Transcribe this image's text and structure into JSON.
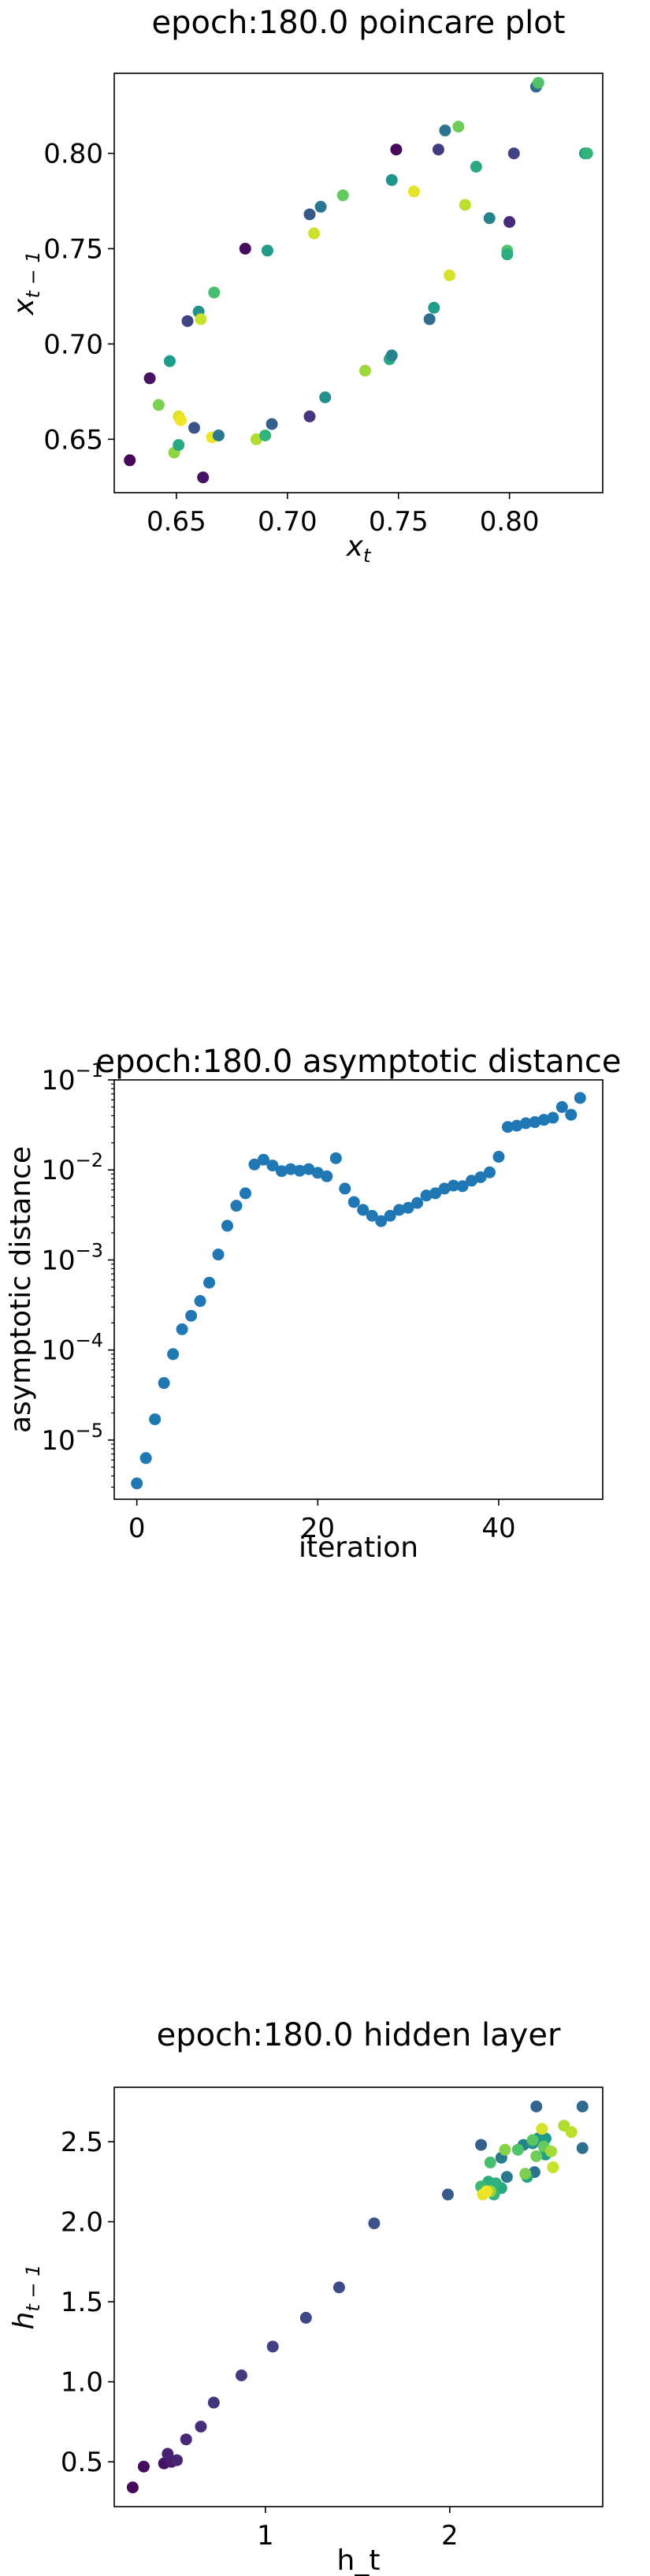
{
  "chart_data": [
    {
      "type": "scatter",
      "title": "epoch:180.0 poincare plot",
      "xlabel": "x",
      "xlabel_sub": "t",
      "ylabel": "x",
      "ylabel_sub": "t − 1",
      "xlim": [
        0.622,
        0.842
      ],
      "ylim": [
        0.622,
        0.842
      ],
      "xticks": [
        {
          "v": 0.65,
          "label": "0.65"
        },
        {
          "v": 0.7,
          "label": "0.70"
        },
        {
          "v": 0.75,
          "label": "0.75"
        },
        {
          "v": 0.8,
          "label": "0.80"
        }
      ],
      "yticks": [
        {
          "v": 0.65,
          "label": "0.65"
        },
        {
          "v": 0.7,
          "label": "0.70"
        },
        {
          "v": 0.75,
          "label": "0.75"
        },
        {
          "v": 0.8,
          "label": "0.80"
        }
      ],
      "colormap": "viridis",
      "points": [
        {
          "x": 0.629,
          "y": 0.639,
          "c": 0.02
        },
        {
          "x": 0.638,
          "y": 0.682,
          "c": 0.05
        },
        {
          "x": 0.642,
          "y": 0.668,
          "c": 0.8
        },
        {
          "x": 0.647,
          "y": 0.691,
          "c": 0.55
        },
        {
          "x": 0.649,
          "y": 0.643,
          "c": 0.83
        },
        {
          "x": 0.651,
          "y": 0.647,
          "c": 0.6
        },
        {
          "x": 0.651,
          "y": 0.662,
          "c": 0.95
        },
        {
          "x": 0.652,
          "y": 0.66,
          "c": 0.98
        },
        {
          "x": 0.655,
          "y": 0.712,
          "c": 0.2
        },
        {
          "x": 0.658,
          "y": 0.656,
          "c": 0.25
        },
        {
          "x": 0.66,
          "y": 0.717,
          "c": 0.5
        },
        {
          "x": 0.661,
          "y": 0.713,
          "c": 0.92
        },
        {
          "x": 0.662,
          "y": 0.63,
          "c": 0.05
        },
        {
          "x": 0.666,
          "y": 0.651,
          "c": 0.97
        },
        {
          "x": 0.667,
          "y": 0.727,
          "c": 0.7
        },
        {
          "x": 0.669,
          "y": 0.652,
          "c": 0.4
        },
        {
          "x": 0.681,
          "y": 0.75,
          "c": 0.03
        },
        {
          "x": 0.686,
          "y": 0.65,
          "c": 0.88
        },
        {
          "x": 0.69,
          "y": 0.652,
          "c": 0.65
        },
        {
          "x": 0.691,
          "y": 0.749,
          "c": 0.55
        },
        {
          "x": 0.693,
          "y": 0.658,
          "c": 0.3
        },
        {
          "x": 0.71,
          "y": 0.768,
          "c": 0.28
        },
        {
          "x": 0.71,
          "y": 0.662,
          "c": 0.15
        },
        {
          "x": 0.712,
          "y": 0.758,
          "c": 0.93
        },
        {
          "x": 0.715,
          "y": 0.772,
          "c": 0.4
        },
        {
          "x": 0.717,
          "y": 0.672,
          "c": 0.5
        },
        {
          "x": 0.725,
          "y": 0.778,
          "c": 0.76
        },
        {
          "x": 0.735,
          "y": 0.686,
          "c": 0.85
        },
        {
          "x": 0.746,
          "y": 0.692,
          "c": 0.6
        },
        {
          "x": 0.747,
          "y": 0.694,
          "c": 0.45
        },
        {
          "x": 0.747,
          "y": 0.786,
          "c": 0.52
        },
        {
          "x": 0.749,
          "y": 0.802,
          "c": 0.02
        },
        {
          "x": 0.757,
          "y": 0.78,
          "c": 0.96
        },
        {
          "x": 0.764,
          "y": 0.713,
          "c": 0.35
        },
        {
          "x": 0.766,
          "y": 0.719,
          "c": 0.55
        },
        {
          "x": 0.768,
          "y": 0.802,
          "c": 0.18
        },
        {
          "x": 0.771,
          "y": 0.812,
          "c": 0.38
        },
        {
          "x": 0.773,
          "y": 0.736,
          "c": 0.94
        },
        {
          "x": 0.777,
          "y": 0.814,
          "c": 0.78
        },
        {
          "x": 0.78,
          "y": 0.773,
          "c": 0.9
        },
        {
          "x": 0.785,
          "y": 0.793,
          "c": 0.6
        },
        {
          "x": 0.791,
          "y": 0.766,
          "c": 0.45
        },
        {
          "x": 0.799,
          "y": 0.749,
          "c": 0.72
        },
        {
          "x": 0.799,
          "y": 0.747,
          "c": 0.62
        },
        {
          "x": 0.8,
          "y": 0.764,
          "c": 0.12
        },
        {
          "x": 0.802,
          "y": 0.8,
          "c": 0.2
        },
        {
          "x": 0.812,
          "y": 0.835,
          "c": 0.35
        },
        {
          "x": 0.813,
          "y": 0.837,
          "c": 0.72
        },
        {
          "x": 0.834,
          "y": 0.8,
          "c": 0.55
        },
        {
          "x": 0.835,
          "y": 0.8,
          "c": 0.65
        }
      ]
    },
    {
      "type": "scatter",
      "title": "epoch:180.0 asymptotic distance",
      "xlabel": "iteration",
      "ylabel": "asymptotic distance",
      "xlim": [
        -2.5,
        51.5
      ],
      "yscale": "log",
      "ylim": [
        2.2e-06,
        0.1
      ],
      "xticks": [
        {
          "v": 0,
          "label": "0"
        },
        {
          "v": 20,
          "label": "20"
        },
        {
          "v": 40,
          "label": "40"
        }
      ],
      "yticks": [
        {
          "exp": -5,
          "base": "10",
          "sup": "−5"
        },
        {
          "exp": -4,
          "base": "10",
          "sup": "−4"
        },
        {
          "exp": -3,
          "base": "10",
          "sup": "−3"
        },
        {
          "exp": -2,
          "base": "10",
          "sup": "−2"
        },
        {
          "exp": -1,
          "base": "10",
          "sup": "−1"
        }
      ],
      "color": "#1f77b4",
      "x": [
        0,
        1,
        2,
        3,
        4,
        5,
        6,
        7,
        8,
        9,
        10,
        11,
        12,
        13,
        14,
        15,
        16,
        17,
        18,
        19,
        20,
        21,
        22,
        23,
        24,
        25,
        26,
        27,
        28,
        29,
        30,
        31,
        32,
        33,
        34,
        35,
        36,
        37,
        38,
        39,
        40,
        41,
        42,
        43,
        44,
        45,
        46,
        47,
        48,
        49
      ],
      "y": [
        3.3e-06,
        6.3e-06,
        1.7e-05,
        4.3e-05,
        9e-05,
        0.00017,
        0.00024,
        0.00035,
        0.00056,
        0.00115,
        0.0024,
        0.004,
        0.0055,
        0.0115,
        0.013,
        0.0112,
        0.0097,
        0.0102,
        0.0098,
        0.0102,
        0.0093,
        0.0085,
        0.0135,
        0.0062,
        0.0044,
        0.0036,
        0.0031,
        0.0027,
        0.0031,
        0.0036,
        0.0038,
        0.0043,
        0.0052,
        0.0055,
        0.0062,
        0.0067,
        0.0066,
        0.0076,
        0.0083,
        0.0094,
        0.014,
        0.03,
        0.031,
        0.033,
        0.034,
        0.036,
        0.038,
        0.05,
        0.041,
        0.063
      ]
    },
    {
      "type": "scatter",
      "title": "epoch:180.0 hidden layer",
      "xlabel": "h_t",
      "ylabel": "h",
      "ylabel_sub": "t − 1",
      "xlim": [
        0.18,
        2.83
      ],
      "ylim": [
        0.22,
        2.84
      ],
      "xticks": [
        {
          "v": 1,
          "label": "1"
        },
        {
          "v": 2,
          "label": "2"
        }
      ],
      "yticks": [
        {
          "v": 0.5,
          "label": "0.5"
        },
        {
          "v": 1.0,
          "label": "1.0"
        },
        {
          "v": 1.5,
          "label": "1.5"
        },
        {
          "v": 2.0,
          "label": "2.0"
        },
        {
          "v": 2.5,
          "label": "2.5"
        }
      ],
      "colormap": "viridis",
      "points": [
        {
          "x": 0.28,
          "y": 0.34,
          "c": 0.02
        },
        {
          "x": 0.34,
          "y": 0.47,
          "c": 0.03
        },
        {
          "x": 0.45,
          "y": 0.49,
          "c": 0.05
        },
        {
          "x": 0.49,
          "y": 0.5,
          "c": 0.07
        },
        {
          "x": 0.47,
          "y": 0.55,
          "c": 0.09
        },
        {
          "x": 0.52,
          "y": 0.51,
          "c": 0.1
        },
        {
          "x": 0.57,
          "y": 0.64,
          "c": 0.11
        },
        {
          "x": 0.65,
          "y": 0.72,
          "c": 0.13
        },
        {
          "x": 0.72,
          "y": 0.87,
          "c": 0.15
        },
        {
          "x": 0.87,
          "y": 1.04,
          "c": 0.17
        },
        {
          "x": 1.04,
          "y": 1.22,
          "c": 0.19
        },
        {
          "x": 1.22,
          "y": 1.4,
          "c": 0.21
        },
        {
          "x": 1.4,
          "y": 1.59,
          "c": 0.23
        },
        {
          "x": 1.59,
          "y": 1.99,
          "c": 0.25
        },
        {
          "x": 1.99,
          "y": 2.17,
          "c": 0.28
        },
        {
          "x": 2.17,
          "y": 2.48,
          "c": 0.3
        },
        {
          "x": 2.47,
          "y": 2.72,
          "c": 0.32
        },
        {
          "x": 2.72,
          "y": 2.72,
          "c": 0.34
        },
        {
          "x": 2.72,
          "y": 2.46,
          "c": 0.36
        },
        {
          "x": 2.46,
          "y": 2.31,
          "c": 0.38
        },
        {
          "x": 2.31,
          "y": 2.28,
          "c": 0.4
        },
        {
          "x": 2.28,
          "y": 2.4,
          "c": 0.42
        },
        {
          "x": 2.4,
          "y": 2.48,
          "c": 0.44
        },
        {
          "x": 2.48,
          "y": 2.52,
          "c": 0.46
        },
        {
          "x": 2.52,
          "y": 2.45,
          "c": 0.48
        },
        {
          "x": 2.45,
          "y": 2.49,
          "c": 0.5
        },
        {
          "x": 2.49,
          "y": 2.52,
          "c": 0.52
        },
        {
          "x": 2.52,
          "y": 2.52,
          "c": 0.54
        },
        {
          "x": 2.52,
          "y": 2.42,
          "c": 0.56
        },
        {
          "x": 2.42,
          "y": 2.28,
          "c": 0.58
        },
        {
          "x": 2.28,
          "y": 2.21,
          "c": 0.6
        },
        {
          "x": 2.21,
          "y": 2.25,
          "c": 0.62
        },
        {
          "x": 2.25,
          "y": 2.24,
          "c": 0.64
        },
        {
          "x": 2.24,
          "y": 2.17,
          "c": 0.66
        },
        {
          "x": 2.17,
          "y": 2.22,
          "c": 0.68
        },
        {
          "x": 2.22,
          "y": 2.37,
          "c": 0.7
        },
        {
          "x": 2.37,
          "y": 2.45,
          "c": 0.72
        },
        {
          "x": 2.45,
          "y": 2.51,
          "c": 0.74
        },
        {
          "x": 2.51,
          "y": 2.47,
          "c": 0.76
        },
        {
          "x": 2.47,
          "y": 2.41,
          "c": 0.78
        },
        {
          "x": 2.41,
          "y": 2.3,
          "c": 0.8
        },
        {
          "x": 2.3,
          "y": 2.45,
          "c": 0.82
        },
        {
          "x": 2.22,
          "y": 2.19,
          "c": 0.84
        },
        {
          "x": 2.55,
          "y": 2.44,
          "c": 0.86
        },
        {
          "x": 2.62,
          "y": 2.6,
          "c": 0.88
        },
        {
          "x": 2.66,
          "y": 2.56,
          "c": 0.9
        },
        {
          "x": 2.56,
          "y": 2.34,
          "c": 0.92
        },
        {
          "x": 2.5,
          "y": 2.58,
          "c": 0.94
        },
        {
          "x": 2.18,
          "y": 2.17,
          "c": 0.96
        },
        {
          "x": 2.2,
          "y": 2.19,
          "c": 0.98
        }
      ]
    }
  ]
}
